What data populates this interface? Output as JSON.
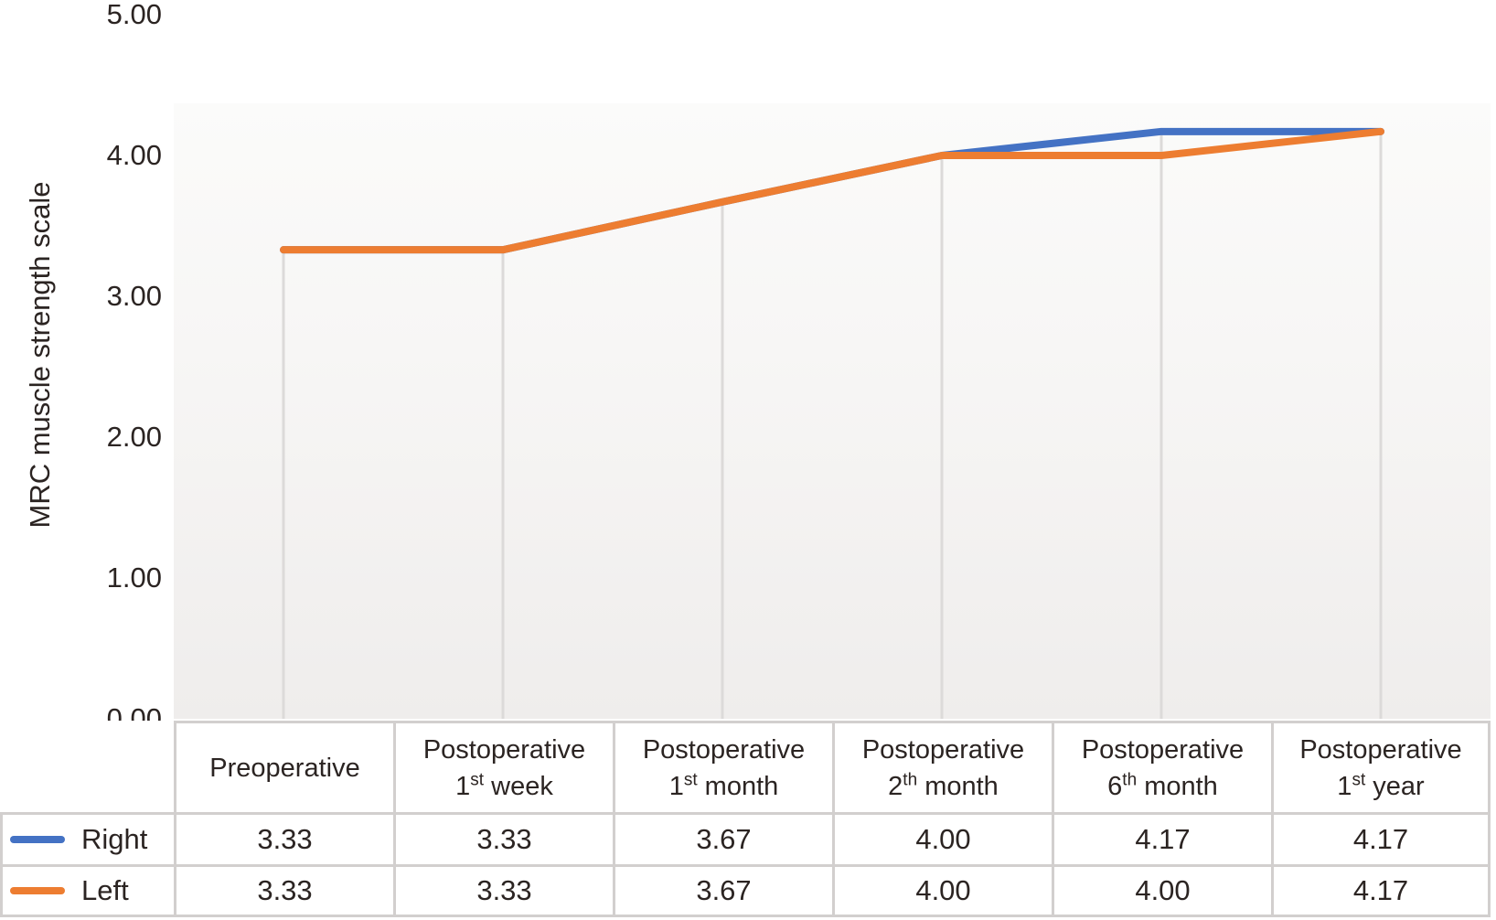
{
  "chart_data": {
    "type": "line",
    "title": "",
    "xlabel": "",
    "ylabel": "MRC muscle strength scale",
    "ylim": [
      0,
      5
    ],
    "ytick_labels": [
      "0.00",
      "1.00",
      "2.00",
      "3.00",
      "4.00",
      "5.00"
    ],
    "grid": "vertical-drop-lines-only",
    "legend_position": "table-left-column",
    "categories": [
      {
        "line1": "Preoperative",
        "num": "",
        "sup": "",
        "rest": ""
      },
      {
        "line1": "Postoperative",
        "num": "1",
        "sup": "st",
        "rest": " week"
      },
      {
        "line1": "Postoperative",
        "num": "1",
        "sup": "st",
        "rest": " month"
      },
      {
        "line1": "Postoperative",
        "num": "2",
        "sup": "th",
        "rest": " month"
      },
      {
        "line1": "Postoperative",
        "num": "6",
        "sup": "th",
        "rest": " month"
      },
      {
        "line1": "Postoperative",
        "num": "1",
        "sup": "st",
        "rest": " year"
      }
    ],
    "series": [
      {
        "name": "Right",
        "color": "#4472c4",
        "values": [
          3.33,
          3.33,
          3.67,
          4.0,
          4.17,
          4.17
        ],
        "display": [
          "3.33",
          "3.33",
          "3.67",
          "4.00",
          "4.17",
          "4.17"
        ]
      },
      {
        "name": "Left",
        "color": "#ed7d31",
        "values": [
          3.33,
          3.33,
          3.67,
          4.0,
          4.0,
          4.17
        ],
        "display": [
          "3.33",
          "3.33",
          "3.67",
          "4.00",
          "4.00",
          "4.17"
        ]
      }
    ],
    "colors": {
      "drop_line": "#dcdad9",
      "table_border": "#d2cfce",
      "text": "#2b2422",
      "plot_bg_top": "#fbfbfa",
      "plot_bg_bottom": "#efedec"
    }
  }
}
